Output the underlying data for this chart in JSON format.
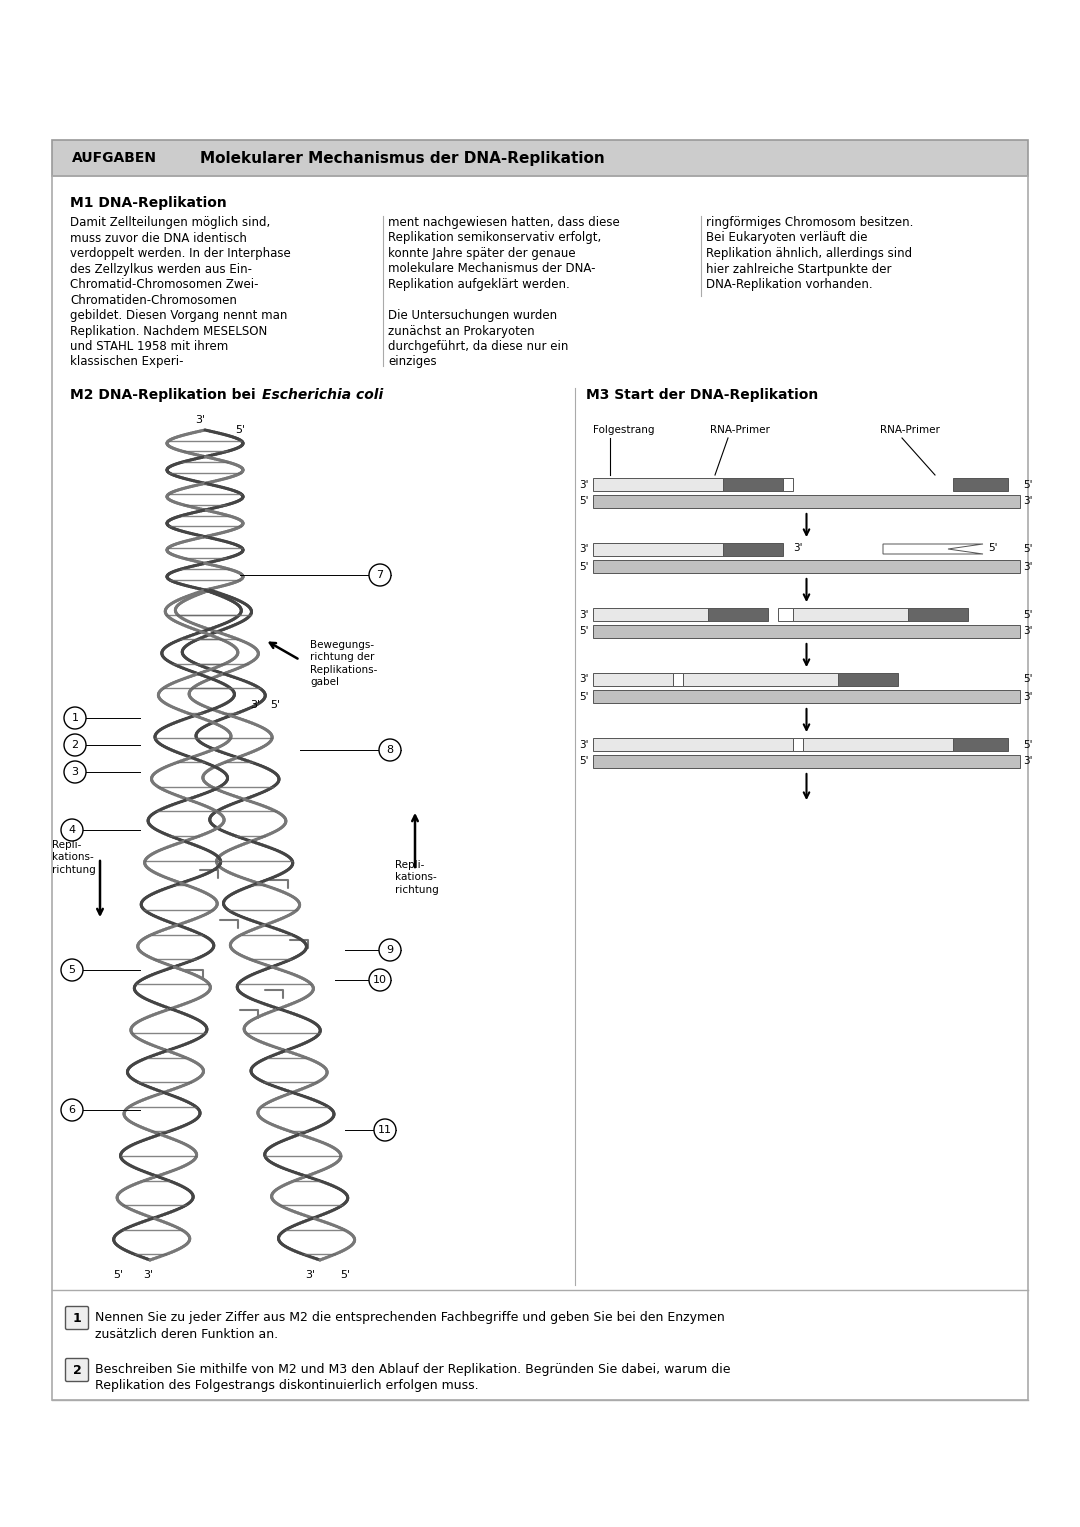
{
  "page_bg": "#ffffff",
  "header_bg": "#cccccc",
  "header_text_aufgaben": "AUFGABEN",
  "header_text_title": "Molekularer Mechanismus der DNA-Replikation",
  "section_m1_title": "M1 DNA-Replikation",
  "col1_text": [
    "Damit Zellteilungen möglich sind,",
    "muss zuvor die DNA identisch",
    "verdoppelt werden. In der Interphase",
    "des Zellzylkus werden aus Ein-",
    "Chromatid-Chromosomen Zwei-",
    "Chromatiden-Chromosomen",
    "gebildet. Diesen Vorgang nennt man",
    "Replikation. Nachdem Mᴇѕєʟѕᴏɴ",
    "und Sᴛᴀʜʟ 1958 mit ihrem",
    "klassischen Experi-"
  ],
  "col1_text_plain": [
    "Damit Zellteilungen möglich sind,",
    "muss zuvor die DNA identisch",
    "verdoppelt werden. In der Interphase",
    "des Zellzylkus werden aus Ein-",
    "Chromatid-Chromosomen Zwei-",
    "Chromatiden-Chromosomen",
    "gebildet. Diesen Vorgang nennt man",
    "Replikation. Nachdem MESELSON",
    "und STAHL 1958 mit ihrem",
    "klassischen Experi-"
  ],
  "col2_text_plain": [
    "ment nachgewiesen hatten, dass diese",
    "Replikation semikonservativ erfolgt,",
    "konnte Jahre später der genaue",
    "molekulare Mechanismus der DNA-",
    "Replikation aufgeklärt werden.",
    "",
    "Die Untersuchungen wurden",
    "zunächst an Prokaryoten",
    "durchgeführt, da diese nur ein",
    "einziges"
  ],
  "col3_text_plain": [
    "ringförmiges Chromosom besitzen.",
    "Bei Eukaryoten verläuft die",
    "Replikation ähnlich, allerdings sind",
    "hier zahlreiche Startpunkte der",
    "DNA-Replikation vorhanden."
  ],
  "section_m2_title_plain": "M2 DNA-Replikation bei ",
  "section_m2_italic": "Escherichia coli",
  "section_m3_title": "M3 Start der DNA-Replikation",
  "question1_text_line1": "Nennen Sie zu jeder Ziffer aus M2 die entsprechenden Fachbegriffe und geben Sie bei den Enzymen",
  "question1_text_line2": "zusätzlich deren Funktion an.",
  "question2_text_line1": "Beschreiben Sie mithilfe von M2 und M3 den Ablauf der Replikation. Begründen Sie dabei, warum die",
  "question2_text_line2": "Replikation des Folgestrangs diskontinuierlich erfolgen muss.",
  "m3_label_folgestrang": "Folgestrang",
  "m3_label_rna1": "RNA-Primer",
  "m3_label_rna2": "RNA-Primer",
  "dna_dark": "#444444",
  "dna_light": "#aaaaaa",
  "dna_rung": "#666666",
  "bar_light": "#e8e8e8",
  "bar_medium": "#aaaaaa",
  "bar_dark": "#666666",
  "bar_full": "#c0c0c0"
}
